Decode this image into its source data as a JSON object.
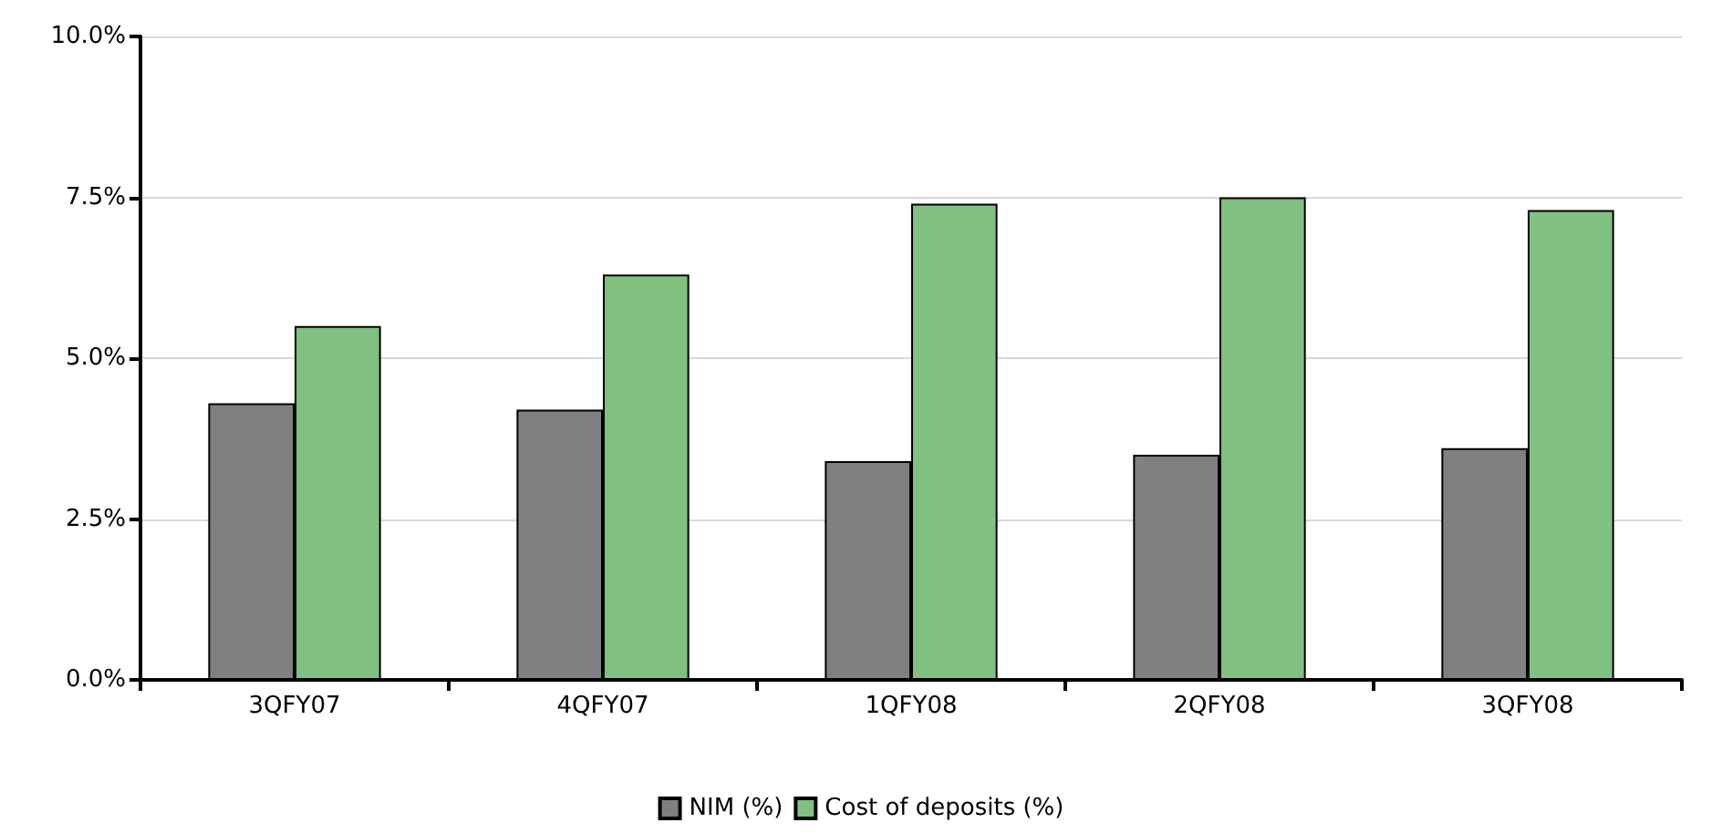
{
  "chart_data": {
    "type": "bar",
    "categories": [
      "3QFY07",
      "4QFY07",
      "1QFY08",
      "2QFY08",
      "3QFY08"
    ],
    "series": [
      {
        "name": "NIM (%)",
        "color": "#808080",
        "values": [
          4.3,
          4.2,
          3.4,
          3.5,
          3.6
        ]
      },
      {
        "name": "Cost of deposits (%)",
        "color": "#80c080",
        "values": [
          5.5,
          6.3,
          7.4,
          7.5,
          7.3
        ]
      }
    ],
    "ylim": [
      0,
      10
    ],
    "yticks": [
      {
        "value": 0,
        "label": "0.0%"
      },
      {
        "value": 2.5,
        "label": "2.5%"
      },
      {
        "value": 5,
        "label": "5.0%"
      },
      {
        "value": 7.5,
        "label": "7.5%"
      },
      {
        "value": 10,
        "label": "10.0%"
      }
    ],
    "grid": "y",
    "legend": "bottom"
  }
}
